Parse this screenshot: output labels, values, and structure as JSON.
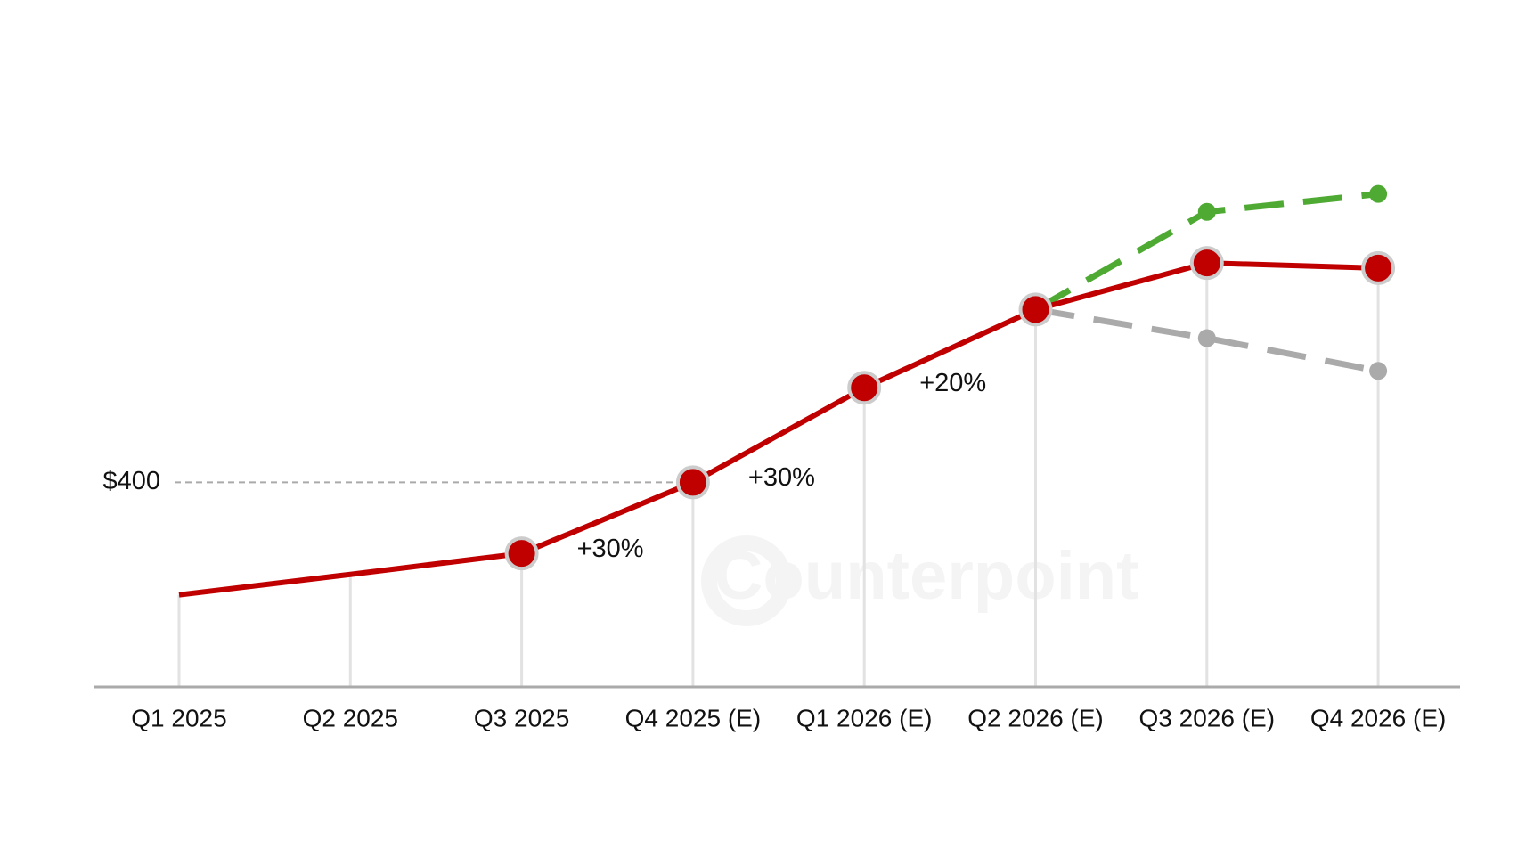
{
  "chart_data": {
    "type": "line",
    "categories": [
      "Q1 2025",
      "Q2 2025",
      "Q3 2025",
      "Q4 2025 (E)",
      "Q1 2026 (E)",
      "Q2 2026 (E)",
      "Q3 2026 (E)",
      "Q4 2026 (E)"
    ],
    "series": [
      {
        "color": "#c00000",
        "values": [
          180,
          220,
          261,
          400,
          585,
          738,
          829,
          819
        ]
      },
      {
        "color": "#4eaa33",
        "values": [
          null,
          null,
          null,
          null,
          null,
          738,
          929,
          964
        ]
      },
      {
        "color": "#aaaaaa",
        "values": [
          null,
          null,
          null,
          null,
          null,
          738,
          682,
          618
        ]
      }
    ],
    "ylim": [
      0,
      1000
    ],
    "yticks": [
      {
        "value": 400,
        "label": "$400"
      }
    ],
    "annotations": [
      "+30%",
      "+30%",
      "+20%"
    ],
    "watermark": "Counterpoint"
  }
}
